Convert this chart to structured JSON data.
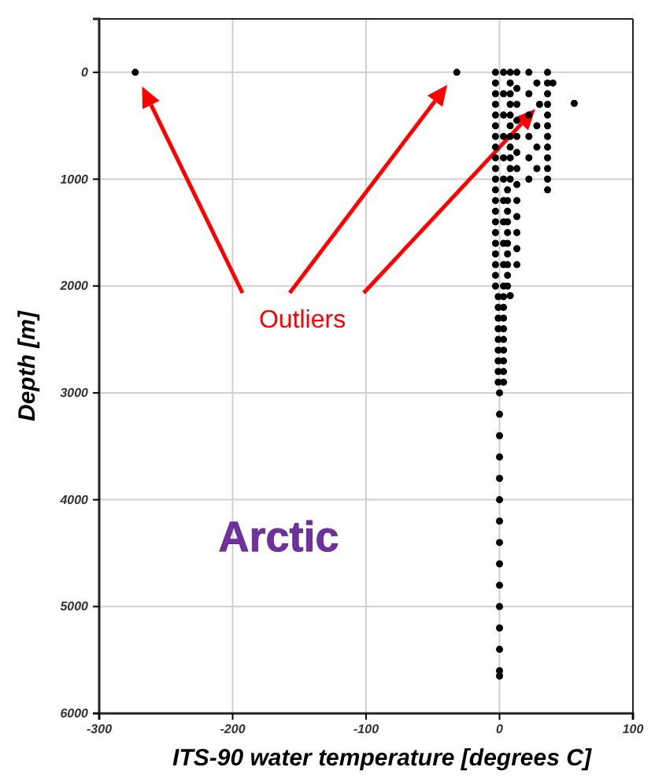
{
  "chart_data": {
    "type": "scatter",
    "xlabel": "ITS-90 water temperature [degrees C]",
    "ylabel": "Depth [m]",
    "xlim": [
      -300,
      100
    ],
    "xticks": [
      -300,
      -200,
      -100,
      0,
      100
    ],
    "ylim": [
      6000,
      -500
    ],
    "yticks": [
      0,
      1000,
      2000,
      3000,
      4000,
      5000,
      6000
    ],
    "grid": true,
    "marker": "circle",
    "annotations": [
      "Outliers",
      "Arctic"
    ],
    "series": [
      {
        "color": "#000000",
        "x": [
          -273,
          -32,
          30,
          56,
          40,
          8,
          -3,
          3,
          8,
          -3,
          8,
          -3,
          3,
          8,
          -3,
          8,
          -3,
          3,
          8,
          -3,
          8,
          -3,
          3,
          8,
          -3,
          8,
          -3,
          3,
          8,
          -3,
          8,
          -3,
          3,
          8,
          -3,
          6,
          -3,
          3,
          6,
          -3,
          6,
          -3,
          3,
          6,
          -3,
          6,
          -3,
          3,
          6,
          -3,
          6,
          -3,
          3,
          6,
          -3,
          6,
          -3,
          3,
          6,
          -1,
          3,
          -1,
          3,
          -1,
          3,
          -1,
          3,
          -1,
          3,
          -1,
          3,
          -1,
          3,
          -1,
          3,
          -1,
          3,
          0,
          0,
          0,
          0,
          0,
          0,
          0,
          0,
          0,
          0,
          0,
          0,
          0,
          0,
          0,
          36,
          36,
          36,
          36,
          36,
          36,
          36,
          36,
          36,
          36,
          36,
          36,
          13,
          13,
          13,
          13,
          13,
          13,
          13,
          13,
          13,
          13,
          13,
          13,
          13,
          22,
          22,
          22,
          22,
          22,
          22,
          28,
          28,
          28,
          28
        ],
        "values": [
          0,
          0,
          300,
          290,
          100,
          2090,
          0,
          0,
          0,
          100,
          100,
          200,
          200,
          200,
          300,
          300,
          400,
          400,
          400,
          500,
          500,
          600,
          600,
          600,
          700,
          700,
          800,
          800,
          800,
          900,
          900,
          1000,
          1000,
          1000,
          1100,
          1100,
          1200,
          1200,
          1200,
          1300,
          1300,
          1400,
          1400,
          1400,
          1500,
          1500,
          1600,
          1600,
          1600,
          1700,
          1700,
          1800,
          1800,
          1800,
          1900,
          1900,
          2000,
          2000,
          2000,
          2100,
          2100,
          2200,
          2200,
          2300,
          2300,
          2400,
          2400,
          2500,
          2500,
          2600,
          2600,
          2700,
          2700,
          2800,
          2800,
          2900,
          2900,
          3000,
          3200,
          3400,
          3600,
          3800,
          4000,
          4200,
          4400,
          4600,
          4800,
          5000,
          5200,
          5400,
          5600,
          5650,
          0,
          100,
          200,
          300,
          400,
          500,
          600,
          700,
          800,
          900,
          1000,
          1100,
          0,
          150,
          300,
          450,
          600,
          750,
          900,
          1050,
          1200,
          1350,
          1500,
          1650,
          1800,
          0,
          200,
          400,
          600,
          800,
          1000,
          100,
          500,
          700,
          900
        ]
      }
    ]
  }
}
